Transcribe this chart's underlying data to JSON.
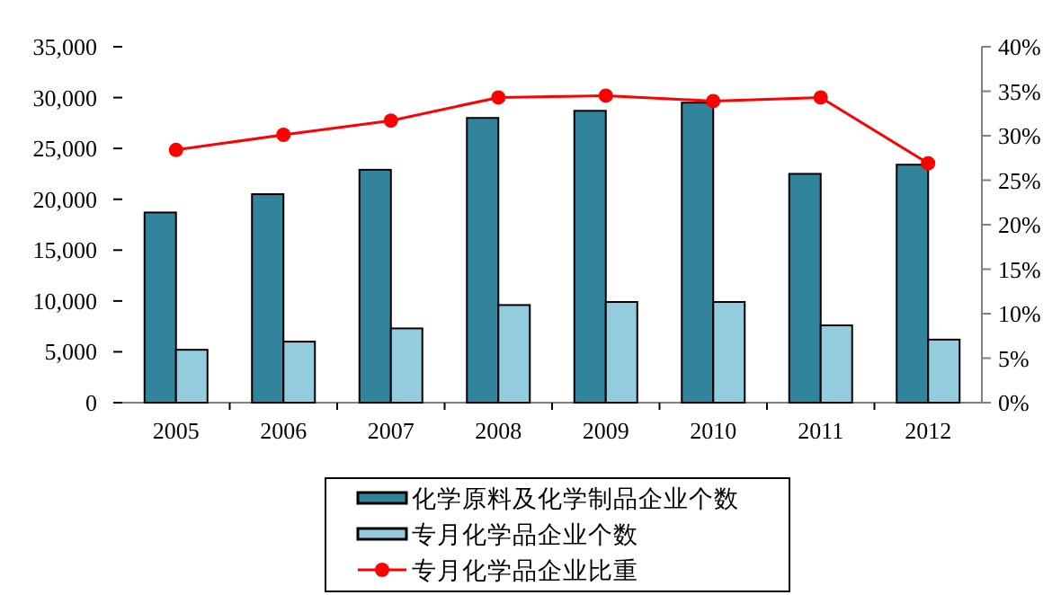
{
  "chart_data": {
    "type": "bar",
    "categories": [
      "2005",
      "2006",
      "2007",
      "2008",
      "2009",
      "2010",
      "2011",
      "2012"
    ],
    "series": [
      {
        "name": "化学原料及化学制品企业个数",
        "color": "#31849b",
        "values": [
          18700,
          20500,
          22900,
          28000,
          28700,
          29500,
          22500,
          23400
        ]
      },
      {
        "name": "专月化学品企业个数",
        "color": "#93cddd",
        "values": [
          5200,
          6000,
          7300,
          9600,
          9900,
          9900,
          7600,
          6200
        ]
      },
      {
        "name": "专月化学品企业比重",
        "color": "#ff0000",
        "type": "line",
        "axis": "y2",
        "marker": "circle",
        "values": [
          28.4,
          30.1,
          31.7,
          34.3,
          34.5,
          33.9,
          34.3,
          26.9
        ]
      }
    ],
    "ylim": [
      0,
      35000
    ],
    "yticks": [
      0,
      {
        "value": 5000,
        "label": "5,000"
      },
      {
        "value": 10000,
        "label": "10,000"
      },
      {
        "value": 15000,
        "label": "15,000"
      },
      {
        "value": 20000,
        "label": "20,000"
      },
      {
        "value": 25000,
        "label": "25,000"
      },
      {
        "value": 30000,
        "label": "30,000"
      },
      {
        "value": 35000,
        "label": "35,000"
      }
    ],
    "y2lim": [
      0,
      40
    ],
    "y2ticks": [
      {
        "value": 0,
        "label": "0%"
      },
      {
        "value": 5,
        "label": "5%"
      },
      {
        "value": 10,
        "label": "10%"
      },
      {
        "value": 15,
        "label": "15%"
      },
      {
        "value": 20,
        "label": "20%"
      },
      {
        "value": 25,
        "label": "25%"
      },
      {
        "value": 30,
        "label": "30%"
      },
      {
        "value": 35,
        "label": "35%"
      },
      {
        "value": 40,
        "label": "40%"
      }
    ],
    "legend": "bottom",
    "grid": false
  }
}
